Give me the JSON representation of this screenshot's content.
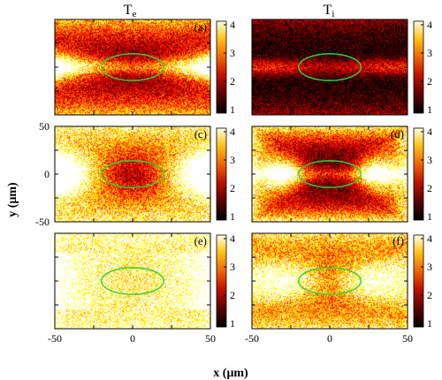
{
  "chart_data": {
    "type": "heatmap",
    "columns": [
      "T",
      "T"
    ],
    "column_subscripts": [
      "e",
      "i"
    ],
    "xlabel": "x (μm)",
    "ylabel": "y (μm)",
    "xlim": [
      -50,
      50
    ],
    "ylim": [
      -50,
      50
    ],
    "x_ticks": [
      "-50",
      "0",
      "50"
    ],
    "y_ticks": [
      "50",
      "0",
      "-50"
    ],
    "colorbar": {
      "range": [
        1,
        4
      ],
      "ticks": [
        "4",
        "3",
        "2",
        "1"
      ],
      "colormap": "hot"
    },
    "ellipse": {
      "center": [
        0,
        0
      ],
      "semi_axes": [
        20,
        14
      ],
      "color": "#31d13a"
    },
    "panels": [
      {
        "label": "(a)",
        "quantity": "Te",
        "row": 0,
        "col": 0,
        "pattern": "electron-early"
      },
      {
        "label": "(b)",
        "quantity": "Ti",
        "row": 0,
        "col": 1,
        "pattern": "ion-early"
      },
      {
        "label": "(c)",
        "quantity": "Te",
        "row": 1,
        "col": 0,
        "pattern": "electron-mid"
      },
      {
        "label": "(d)",
        "quantity": "Ti",
        "row": 1,
        "col": 1,
        "pattern": "ion-mid"
      },
      {
        "label": "(e)",
        "quantity": "Te",
        "row": 2,
        "col": 0,
        "pattern": "electron-late"
      },
      {
        "label": "(f)",
        "quantity": "Ti",
        "row": 2,
        "col": 1,
        "pattern": "ion-late"
      }
    ]
  }
}
